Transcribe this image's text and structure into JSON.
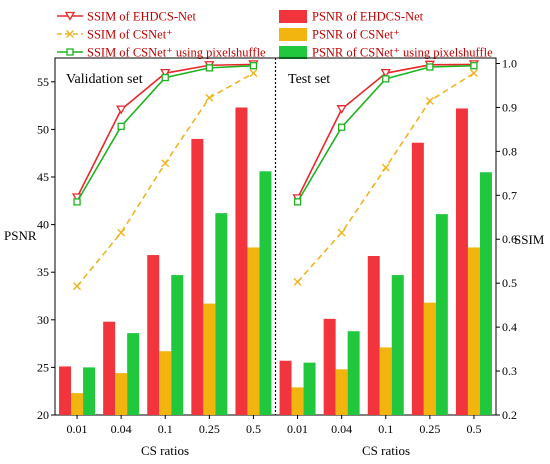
{
  "chart_data": {
    "type": "bar+line",
    "categories": [
      "0.01",
      "0.04",
      "0.1",
      "0.25",
      "0.5"
    ],
    "xlabel": "CS ratios",
    "ylabel_left": "PSNR",
    "ylabel_right": "SSIM",
    "ylim_left": [
      20,
      57.5
    ],
    "ylim_right": [
      0.2,
      1.0125
    ],
    "yticks_left": [
      20,
      25,
      30,
      35,
      40,
      45,
      50,
      55
    ],
    "yticks_right": [
      "0.2",
      "0.3",
      "0.4",
      "0.5",
      "0.6",
      "0.7",
      "0.8",
      "0.9",
      "1.0"
    ],
    "legend": [
      {
        "label": "SSIM of EHDCS-Net",
        "kind": "line",
        "color": "#e8282b",
        "marker": "triangle-down",
        "dash": false
      },
      {
        "label": "SSIM of CSNet⁺",
        "kind": "line",
        "color": "#f0b323",
        "marker": "x",
        "dash": true
      },
      {
        "label": "SSIM of CSNet⁺ using pixelshuffle",
        "kind": "line",
        "color": "#1db31d",
        "marker": "square",
        "dash": false
      },
      {
        "label": "PSNR of EHDCS-Net",
        "kind": "bar",
        "color": "#f2353c"
      },
      {
        "label": "PSNR of CSNet⁺",
        "kind": "bar",
        "color": "#f2b40f"
      },
      {
        "label": "PSNR of CSNet⁺ using pixelshuffle",
        "kind": "bar",
        "color": "#21c83e"
      }
    ],
    "panels": [
      {
        "title": "Validation set",
        "psnr": {
          "EHDCS-Net": [
            25.1,
            29.8,
            36.8,
            49.0,
            52.3
          ],
          "CSNet+": [
            22.3,
            24.4,
            26.7,
            31.7,
            37.6
          ],
          "CSNet+ pixelshuffle": [
            25.0,
            28.6,
            34.7,
            41.2,
            45.6
          ]
        },
        "ssim": {
          "EHDCS-Net": [
            0.695,
            0.895,
            0.978,
            0.996,
            0.998
          ],
          "CSNet+": [
            0.493,
            0.615,
            0.773,
            0.922,
            0.978
          ],
          "CSNet+ pixelshuffle": [
            0.685,
            0.857,
            0.968,
            0.99,
            0.995
          ]
        }
      },
      {
        "title": "Test set",
        "psnr": {
          "EHDCS-Net": [
            25.7,
            30.1,
            36.7,
            48.6,
            52.2
          ],
          "CSNet+": [
            22.9,
            24.8,
            27.1,
            31.8,
            37.6
          ],
          "CSNet+ pixelshuffle": [
            25.5,
            28.8,
            34.7,
            41.1,
            45.5
          ]
        },
        "ssim": {
          "EHDCS-Net": [
            0.693,
            0.896,
            0.978,
            0.997,
            0.998
          ],
          "CSNet+": [
            0.503,
            0.615,
            0.763,
            0.915,
            0.978
          ],
          "CSNet+ pixelshuffle": [
            0.685,
            0.855,
            0.965,
            0.992,
            0.995
          ]
        }
      }
    ]
  }
}
